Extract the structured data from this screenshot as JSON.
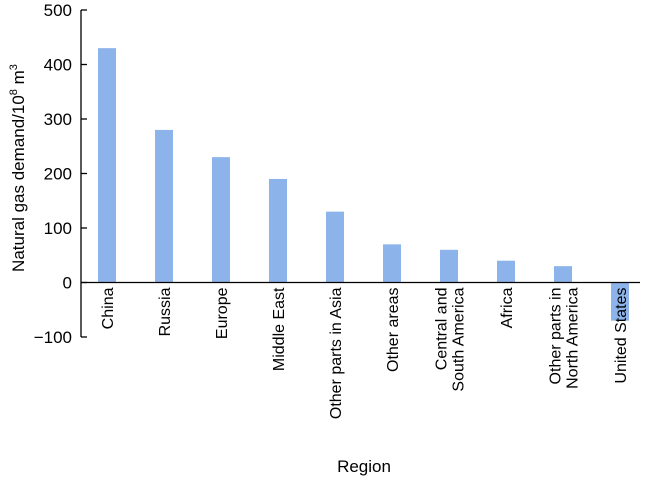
{
  "chart_data": {
    "type": "bar",
    "xlabel": "Region",
    "ylabel": "Natural gas demand/10",
    "ylabel_sup": "8",
    "ylabel_unit": " m",
    "ylabel_unit_sup": "3",
    "ylim": [
      -100,
      500
    ],
    "yticks": [
      -100,
      0,
      100,
      200,
      300,
      400,
      500
    ],
    "ytick_labels": [
      "−100",
      "0",
      "100",
      "200",
      "300",
      "400",
      "500"
    ],
    "grid": false,
    "bar_color": "#8db4ea",
    "categories": [
      [
        "China"
      ],
      [
        "Russia"
      ],
      [
        "Europe"
      ],
      [
        "Middle East"
      ],
      [
        "Other parts in Asia"
      ],
      [
        "Other areas"
      ],
      [
        "Central and",
        "South America"
      ],
      [
        "Africa"
      ],
      [
        "Other parts in",
        "North America"
      ],
      [
        "United States"
      ]
    ],
    "values": [
      430,
      280,
      230,
      190,
      130,
      70,
      60,
      40,
      30,
      -70
    ]
  }
}
